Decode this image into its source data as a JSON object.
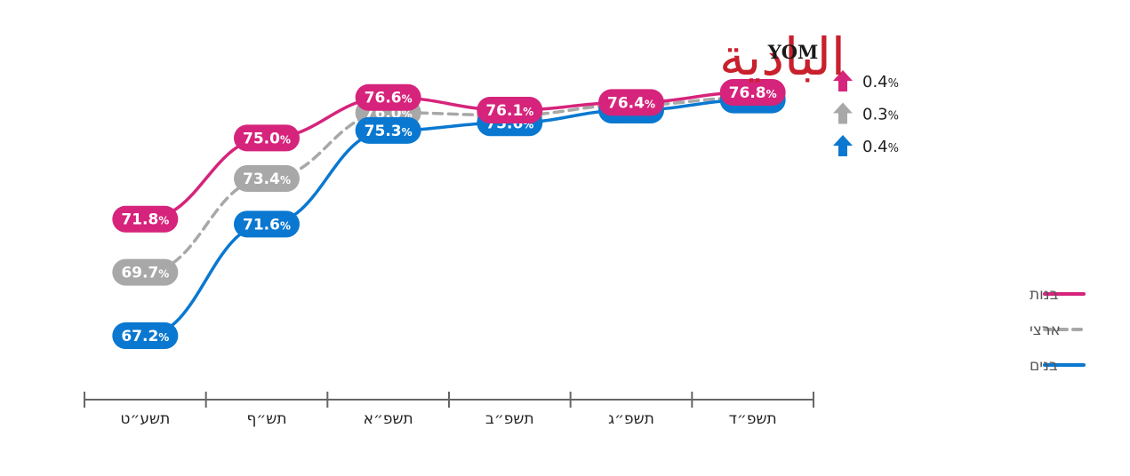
{
  "colors": {
    "girls": "#d6237b",
    "national": "#a8a8a8",
    "boys": "#0a78d0",
    "axis": "#666666"
  },
  "logo": {
    "arabic_text": "البادية",
    "yom_text": "YOM"
  },
  "chart_data": {
    "type": "line",
    "title": "",
    "xlabel": "",
    "ylabel": "",
    "ylim": [
      66,
      78
    ],
    "grid": false,
    "legend_position": "right",
    "categories": [
      "תשע״ט",
      "תש״ף",
      "תשפ״א",
      "תשפ״ב",
      "תשפ״ג",
      "תשפ״ד"
    ],
    "series": [
      {
        "key": "girls",
        "name": "בנות",
        "style": "solid",
        "values": [
          71.8,
          75.0,
          76.6,
          76.1,
          76.4,
          76.8
        ]
      },
      {
        "key": "national",
        "name": "ארצי",
        "style": "dashed",
        "values": [
          69.7,
          73.4,
          76.0,
          75.9,
          76.3,
          76.6
        ]
      },
      {
        "key": "boys",
        "name": "בנים",
        "style": "solid",
        "values": [
          67.2,
          71.6,
          75.3,
          75.6,
          76.1,
          76.5
        ]
      }
    ],
    "changes": [
      {
        "key": "girls",
        "value": "0.4",
        "unit": "%",
        "direction": "up"
      },
      {
        "key": "national",
        "value": "0.3",
        "unit": "%",
        "direction": "up"
      },
      {
        "key": "boys",
        "value": "0.4",
        "unit": "%",
        "direction": "up"
      }
    ]
  }
}
